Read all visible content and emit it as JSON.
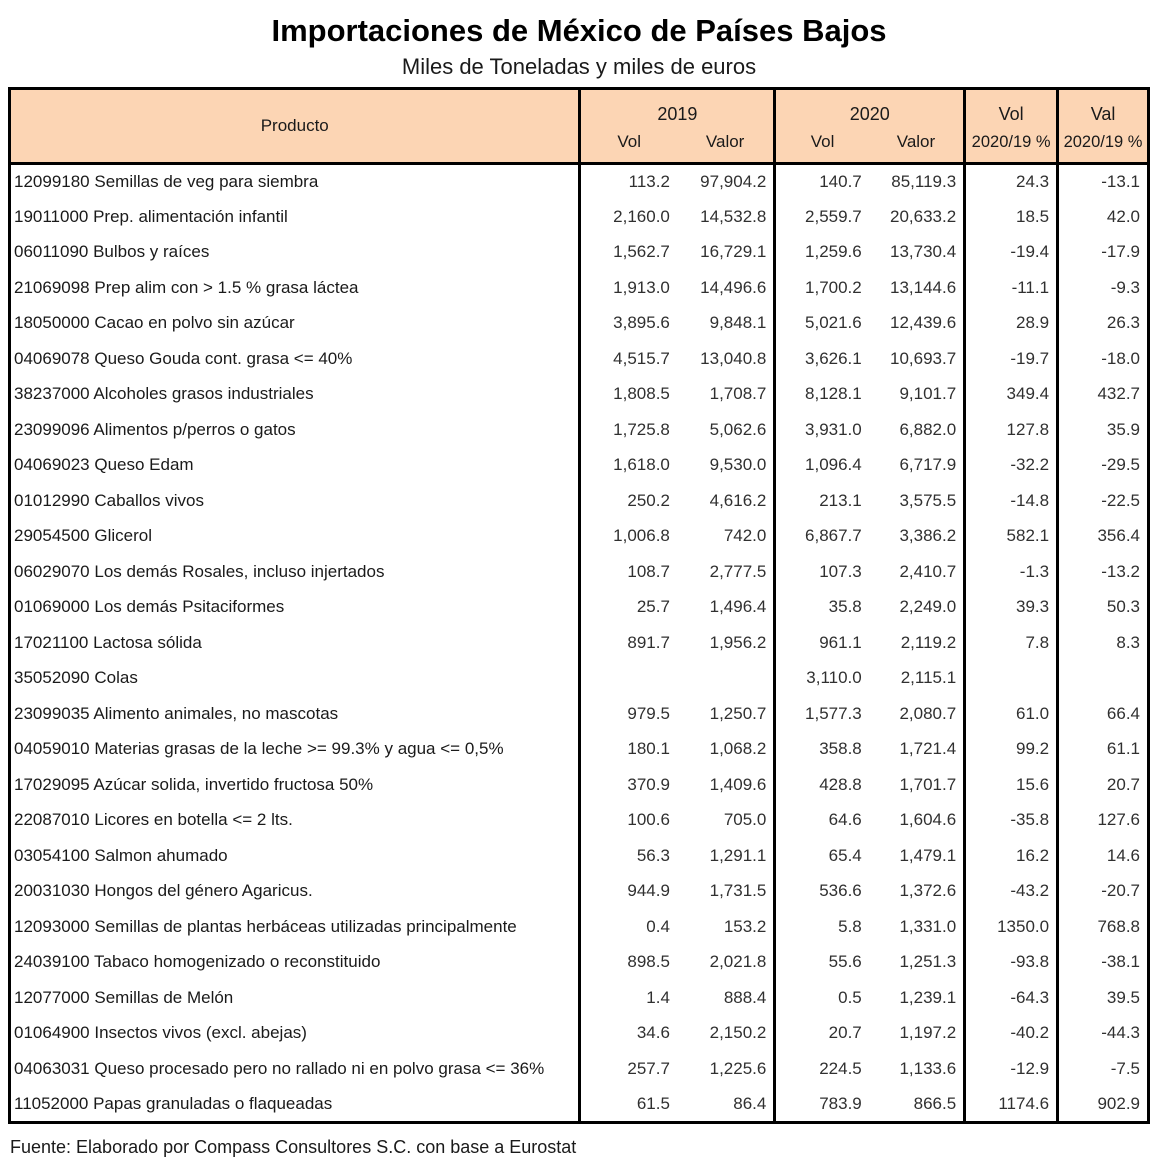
{
  "title": "Importaciones de México de Países Bajos",
  "subtitle": "Miles de Toneladas y miles de euros",
  "source": "Fuente: Elaborado por Compass Consultores S.C. con base a Eurostat",
  "colors": {
    "header_bg": "#FCD5B4",
    "border": "#000000",
    "text": "#1a1a1a"
  },
  "header": {
    "producto": "Producto",
    "y2019": "2019",
    "y2020": "2020",
    "vol": "Vol",
    "valor": "Valor",
    "vol_short": "Vol",
    "val_short": "Val",
    "pct": "2020/19 %"
  },
  "chart_data": {
    "type": "table",
    "title": "Importaciones de México de Países Bajos",
    "subtitle": "Miles de Toneladas y miles de euros",
    "columns": [
      "Producto",
      "2019 Vol",
      "2019 Valor",
      "2020 Vol",
      "2020 Valor",
      "Vol 2020/19 %",
      "Val 2020/19 %"
    ],
    "rows": [
      [
        "12099180 Semillas de veg para siembra",
        "113.2",
        "97,904.2",
        "140.7",
        "85,119.3",
        "24.3",
        "-13.1"
      ],
      [
        "19011000 Prep. alimentación infantil",
        "2,160.0",
        "14,532.8",
        "2,559.7",
        "20,633.2",
        "18.5",
        "42.0"
      ],
      [
        "06011090 Bulbos y raíces",
        "1,562.7",
        "16,729.1",
        "1,259.6",
        "13,730.4",
        "-19.4",
        "-17.9"
      ],
      [
        "21069098 Prep alim con > 1.5 % grasa láctea",
        "1,913.0",
        "14,496.6",
        "1,700.2",
        "13,144.6",
        "-11.1",
        "-9.3"
      ],
      [
        "18050000 Cacao en polvo sin azúcar",
        "3,895.6",
        "9,848.1",
        "5,021.6",
        "12,439.6",
        "28.9",
        "26.3"
      ],
      [
        "04069078 Queso Gouda cont. grasa <= 40%",
        "4,515.7",
        "13,040.8",
        "3,626.1",
        "10,693.7",
        "-19.7",
        "-18.0"
      ],
      [
        "38237000 Alcoholes grasos industriales",
        "1,808.5",
        "1,708.7",
        "8,128.1",
        "9,101.7",
        "349.4",
        "432.7"
      ],
      [
        "23099096 Alimentos p/perros o gatos",
        "1,725.8",
        "5,062.6",
        "3,931.0",
        "6,882.0",
        "127.8",
        "35.9"
      ],
      [
        "04069023 Queso Edam",
        "1,618.0",
        "9,530.0",
        "1,096.4",
        "6,717.9",
        "-32.2",
        "-29.5"
      ],
      [
        "01012990 Caballos vivos",
        "250.2",
        "4,616.2",
        "213.1",
        "3,575.5",
        "-14.8",
        "-22.5"
      ],
      [
        "29054500 Glicerol",
        "1,006.8",
        "742.0",
        "6,867.7",
        "3,386.2",
        "582.1",
        "356.4"
      ],
      [
        "06029070 Los demás Rosales, incluso injertados",
        "108.7",
        "2,777.5",
        "107.3",
        "2,410.7",
        "-1.3",
        "-13.2"
      ],
      [
        "01069000 Los demás Psitaciformes",
        "25.7",
        "1,496.4",
        "35.8",
        "2,249.0",
        "39.3",
        "50.3"
      ],
      [
        "17021100 Lactosa sólida",
        "891.7",
        "1,956.2",
        "961.1",
        "2,119.2",
        "7.8",
        "8.3"
      ],
      [
        "35052090 Colas",
        "",
        "",
        "3,110.0",
        "2,115.1",
        "",
        ""
      ],
      [
        "23099035 Alimento animales, no mascotas",
        "979.5",
        "1,250.7",
        "1,577.3",
        "2,080.7",
        "61.0",
        "66.4"
      ],
      [
        "04059010 Materias grasas de la leche >= 99.3% y agua <= 0,5%",
        "180.1",
        "1,068.2",
        "358.8",
        "1,721.4",
        "99.2",
        "61.1"
      ],
      [
        "17029095 Azúcar solida, invertido fructosa 50%",
        "370.9",
        "1,409.6",
        "428.8",
        "1,701.7",
        "15.6",
        "20.7"
      ],
      [
        "22087010 Licores en botella <= 2 lts.",
        "100.6",
        "705.0",
        "64.6",
        "1,604.6",
        "-35.8",
        "127.6"
      ],
      [
        "03054100 Salmon ahumado",
        "56.3",
        "1,291.1",
        "65.4",
        "1,479.1",
        "16.2",
        "14.6"
      ],
      [
        "20031030 Hongos del género Agaricus.",
        "944.9",
        "1,731.5",
        "536.6",
        "1,372.6",
        "-43.2",
        "-20.7"
      ],
      [
        "12093000 Semillas de plantas herbáceas utilizadas principalmente",
        "0.4",
        "153.2",
        "5.8",
        "1,331.0",
        "1350.0",
        "768.8"
      ],
      [
        "24039100 Tabaco homogenizado o reconstituido",
        "898.5",
        "2,021.8",
        "55.6",
        "1,251.3",
        "-93.8",
        "-38.1"
      ],
      [
        "12077000 Semillas de Melón",
        "1.4",
        "888.4",
        "0.5",
        "1,239.1",
        "-64.3",
        "39.5"
      ],
      [
        "01064900 Insectos vivos (excl. abejas)",
        "34.6",
        "2,150.2",
        "20.7",
        "1,197.2",
        "-40.2",
        "-44.3"
      ],
      [
        "04063031 Queso procesado pero no rallado ni en polvo grasa <= 36%",
        "257.7",
        "1,225.6",
        "224.5",
        "1,133.6",
        "-12.9",
        "-7.5"
      ],
      [
        "11052000 Papas granuladas o flaqueadas",
        "61.5",
        "86.4",
        "783.9",
        "866.5",
        "1174.6",
        "902.9"
      ]
    ]
  }
}
